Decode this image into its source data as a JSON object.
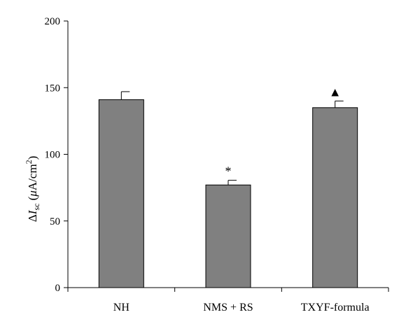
{
  "chart_data": {
    "type": "bar",
    "title": "",
    "categories": [
      "NH",
      "NMS + RS",
      "TXYF-formula"
    ],
    "values": [
      141,
      77,
      135
    ],
    "errors": [
      6,
      3.5,
      5
    ],
    "annotations": [
      "",
      "*",
      "▲"
    ],
    "ylabel": {
      "delta": "Δ",
      "symbol": "I",
      "subscript": "sc",
      "unit_prefix": " (",
      "unit_mu": "μ",
      "unit_body": "A/cm",
      "unit_sup": "2",
      "unit_suffix": ")"
    },
    "xlabel": "",
    "ylim": [
      0,
      200
    ],
    "yticks": [
      0,
      50,
      100,
      150,
      200
    ],
    "bar_color": "#808080",
    "grid": false,
    "legend": "none"
  }
}
